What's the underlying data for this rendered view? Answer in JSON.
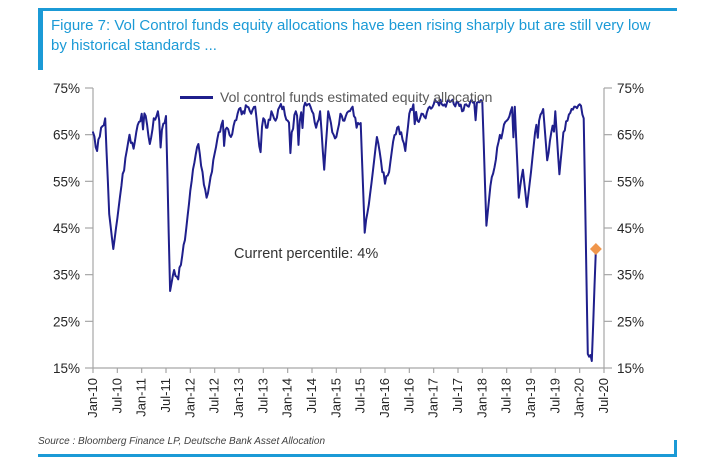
{
  "figure": {
    "title": "Figure 7: Vol Control funds equity allocations have been rising sharply but are still very low by historical standards ...",
    "source": "Source : Bloomberg Finance LP, Deutsche Bank Asset Allocation"
  },
  "colors": {
    "accent_blue": "#1b9ad6",
    "series_navy": "#1f1f8c",
    "marker_orange": "#f0964b",
    "axis_gray": "#a6a6a6",
    "tick_label": "#262626",
    "legend_text": "#595959"
  },
  "chart_data": {
    "type": "line",
    "title": "Figure 7: Vol Control funds equity allocations have been rising sharply but are still very low by historical standards ...",
    "legend_position": "top-center",
    "grid": false,
    "ylim": [
      15,
      75
    ],
    "y_ticks": [
      75,
      65,
      55,
      45,
      35,
      25,
      15
    ],
    "y_tick_labels": [
      "75%",
      "65%",
      "55%",
      "45%",
      "35%",
      "25%",
      "15%"
    ],
    "x_tick_labels": [
      "Jan-10",
      "Jul-10",
      "Jan-11",
      "Jul-11",
      "Jan-12",
      "Jul-12",
      "Jan-13",
      "Jul-13",
      "Jan-14",
      "Jul-14",
      "Jan-15",
      "Jul-15",
      "Jan-16",
      "Jul-16",
      "Jan-17",
      "Jul-17",
      "Jan-18",
      "Jul-18",
      "Jan-19",
      "Jul-19",
      "Jan-20",
      "Jul-20"
    ],
    "x_total_months": 126,
    "annotation": "Current percentile: 4%",
    "series": [
      {
        "name": "Vol control funds estimated equity allocation",
        "x_monthly_from": "Jan-2010",
        "x_monthly_to": "May-2020",
        "values": [
          65.5,
          61.5,
          66.5,
          68.5,
          48,
          40.5,
          47,
          54,
          60,
          65,
          62,
          67,
          69.5,
          69,
          63,
          68.5,
          70,
          66,
          69,
          31.5,
          36,
          34,
          39,
          45,
          53,
          59,
          63,
          57,
          51.5,
          56,
          61,
          65.5,
          68,
          66.5,
          64.5,
          68,
          70.5,
          70,
          71,
          69.5,
          71,
          62.5,
          68.5,
          66.5,
          70,
          68,
          71,
          71,
          68,
          65.5,
          70,
          68,
          71,
          71.5,
          70,
          66.5,
          70,
          57.5,
          70,
          65.5,
          64.5,
          69.5,
          68,
          70,
          71,
          66.5,
          67.5,
          44,
          50,
          57,
          64.5,
          59.5,
          54.5,
          57,
          63.5,
          66.5,
          65.5,
          61.5,
          69.5,
          71.5,
          68,
          69.5,
          68.5,
          71,
          71.5,
          72,
          71.5,
          71,
          72,
          71.5,
          72,
          70,
          71.5,
          72,
          72,
          72,
          72,
          45.5,
          54,
          58,
          63.5,
          65.5,
          68,
          70,
          71,
          51.5,
          57.5,
          49.5,
          57,
          65.5,
          68,
          70.5,
          59.5,
          65.5,
          70,
          56.5,
          65.5,
          68,
          70.5,
          71,
          71.5,
          68.5,
          18,
          16.5,
          40.5
        ]
      }
    ],
    "end_marker": {
      "shape": "diamond",
      "color": "#f0964b",
      "value": 40.5,
      "label": "latest reading"
    }
  }
}
